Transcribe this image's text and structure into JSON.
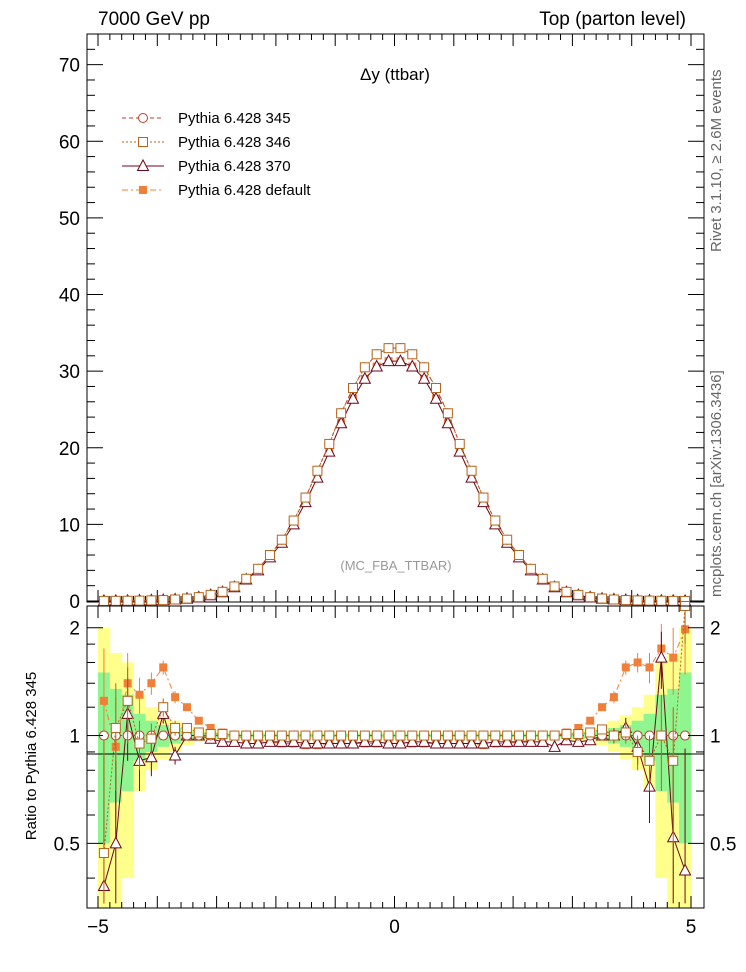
{
  "header": {
    "energy": "7000 GeV pp",
    "process": "Top (parton level)"
  },
  "side": {
    "rivet": "Rivet 3.1.10, ≥ 2.6M events",
    "source": "mcplots.cern.ch [arXiv:1306.3436]"
  },
  "chart_data": {
    "type": "line",
    "title": "Δy (ttbar)",
    "analysis": "(MC_FBA_TTBAR)",
    "xlim": [
      -5,
      5
    ],
    "ylim": [
      0,
      74
    ],
    "ratio_ylim": [
      0.33,
      2.3
    ],
    "ratio_ylabel": "Ratio to Pythia 6.428 345",
    "x_ticks": [
      "−5",
      "0",
      "5"
    ],
    "y_ticks": [
      "0",
      "10",
      "20",
      "30",
      "40",
      "50",
      "60",
      "70"
    ],
    "ratio_ticks": [
      "0.5",
      "1",
      "2"
    ],
    "x": [
      -4.9,
      -4.7,
      -4.5,
      -4.3,
      -4.1,
      -3.9,
      -3.7,
      -3.5,
      -3.3,
      -3.1,
      -2.9,
      -2.7,
      -2.5,
      -2.3,
      -2.1,
      -1.9,
      -1.7,
      -1.5,
      -1.3,
      -1.1,
      -0.9,
      -0.7,
      -0.5,
      -0.3,
      -0.1,
      0.1,
      0.3,
      0.5,
      0.7,
      0.9,
      1.1,
      1.3,
      1.5,
      1.7,
      1.9,
      2.1,
      2.3,
      2.5,
      2.7,
      2.9,
      3.1,
      3.3,
      3.5,
      3.7,
      3.9,
      4.1,
      4.3,
      4.5,
      4.7,
      4.9
    ],
    "series": [
      {
        "name": "Pythia 6.428 345",
        "color": "#c0392b",
        "marker": "open-circle",
        "values": [
          0.01,
          0.02,
          0.03,
          0.05,
          0.08,
          0.12,
          0.2,
          0.32,
          0.5,
          0.8,
          1.2,
          1.9,
          2.9,
          4.2,
          6.0,
          8.0,
          10.5,
          13.5,
          17.0,
          20.5,
          24.5,
          27.8,
          30.5,
          32.2,
          33.0,
          33.0,
          32.2,
          30.5,
          27.8,
          24.5,
          20.5,
          17.0,
          13.5,
          10.5,
          8.0,
          6.0,
          4.2,
          2.9,
          1.9,
          1.2,
          0.8,
          0.5,
          0.32,
          0.2,
          0.12,
          0.08,
          0.05,
          0.03,
          0.02,
          0.01
        ],
        "ratio": [
          1,
          1,
          1,
          1,
          1,
          1,
          1,
          1,
          1,
          1,
          1,
          1,
          1,
          1,
          1,
          1,
          1,
          1,
          1,
          1,
          1,
          1,
          1,
          1,
          1,
          1,
          1,
          1,
          1,
          1,
          1,
          1,
          1,
          1,
          1,
          1,
          1,
          1,
          1,
          1,
          1,
          1,
          1,
          1,
          1,
          1,
          1,
          1,
          1,
          1
        ]
      },
      {
        "name": "Pythia 6.428 346",
        "color": "#b5651d",
        "marker": "open-square",
        "values": [
          0.01,
          0.02,
          0.03,
          0.05,
          0.08,
          0.12,
          0.2,
          0.32,
          0.5,
          0.8,
          1.2,
          1.9,
          2.9,
          4.2,
          6.0,
          8.0,
          10.5,
          13.5,
          17.0,
          20.5,
          24.5,
          27.8,
          30.5,
          32.2,
          33.0,
          33.0,
          32.2,
          30.5,
          27.8,
          24.5,
          20.5,
          17.0,
          13.5,
          10.5,
          8.0,
          6.0,
          4.2,
          2.9,
          1.9,
          1.2,
          0.8,
          0.5,
          0.32,
          0.2,
          0.12,
          0.08,
          0.05,
          0.03,
          0.02,
          0.01
        ],
        "ratio": [
          0.47,
          1.05,
          1.25,
          0.95,
          0.98,
          1.2,
          1.05,
          1.05,
          1.02,
          1.01,
          1.01,
          1.0,
          1.0,
          1.0,
          1.0,
          1.0,
          1.0,
          1.0,
          1.0,
          1.0,
          1.0,
          1.0,
          1.0,
          1.0,
          1.0,
          1.0,
          1.0,
          1.0,
          1.0,
          1.0,
          1.0,
          1.0,
          1.0,
          1.0,
          1.0,
          1.0,
          1.0,
          1.0,
          1.0,
          1.01,
          1.01,
          1.02,
          1.04,
          1.0,
          1.02,
          0.9,
          0.85,
          1.0,
          0.85,
          2.3
        ]
      },
      {
        "name": "Pythia 6.428 370",
        "color": "#6d071a",
        "marker": "open-triangle",
        "values": [
          0.01,
          0.02,
          0.03,
          0.05,
          0.08,
          0.12,
          0.2,
          0.3,
          0.47,
          0.75,
          1.15,
          1.8,
          2.8,
          4.0,
          5.7,
          7.6,
          10.0,
          12.9,
          16.1,
          19.5,
          23.2,
          26.4,
          29.0,
          30.6,
          31.3,
          31.3,
          30.6,
          29.0,
          26.4,
          23.2,
          19.5,
          16.1,
          12.9,
          10.0,
          7.6,
          5.7,
          4.0,
          2.8,
          1.8,
          1.15,
          0.75,
          0.47,
          0.3,
          0.2,
          0.12,
          0.08,
          0.05,
          0.03,
          0.02,
          0.01
        ],
        "ratio": [
          0.38,
          0.5,
          1.15,
          0.85,
          0.87,
          1.15,
          0.88,
          1.0,
          1.0,
          0.98,
          0.96,
          0.96,
          0.95,
          0.95,
          0.96,
          0.96,
          0.96,
          0.95,
          0.95,
          0.95,
          0.95,
          0.95,
          0.96,
          0.96,
          0.95,
          0.95,
          0.96,
          0.96,
          0.95,
          0.95,
          0.95,
          0.95,
          0.95,
          0.96,
          0.96,
          0.96,
          0.96,
          0.96,
          0.93,
          0.97,
          0.96,
          0.97,
          1.0,
          1.0,
          1.05,
          0.93,
          0.72,
          1.65,
          0.52,
          0.42
        ]
      },
      {
        "name": "Pythia 6.428 default",
        "color": "#f07f3a",
        "marker": "filled-square",
        "values": [
          0.01,
          0.02,
          0.03,
          0.05,
          0.08,
          0.12,
          0.2,
          0.3,
          0.47,
          0.75,
          1.15,
          1.8,
          2.8,
          4.0,
          5.7,
          7.6,
          10.0,
          12.9,
          16.1,
          19.5,
          23.2,
          26.4,
          29.0,
          30.6,
          31.3,
          31.3,
          30.6,
          29.0,
          26.4,
          23.2,
          19.5,
          16.1,
          12.9,
          10.0,
          7.6,
          5.7,
          4.0,
          2.8,
          1.8,
          1.15,
          0.75,
          0.47,
          0.3,
          0.2,
          0.12,
          0.08,
          0.05,
          0.03,
          0.02,
          0.01
        ],
        "ratio": [
          1.25,
          0.93,
          1.4,
          1.3,
          1.4,
          1.55,
          1.28,
          1.2,
          1.1,
          1.05,
          1.02,
          1.0,
          0.98,
          0.97,
          0.96,
          0.95,
          0.95,
          0.94,
          0.94,
          0.95,
          0.95,
          0.95,
          0.95,
          0.95,
          0.95,
          0.95,
          0.95,
          0.95,
          0.95,
          0.95,
          0.95,
          0.95,
          0.94,
          0.95,
          0.95,
          0.96,
          0.97,
          0.98,
          1.0,
          1.02,
          1.05,
          1.1,
          1.2,
          1.28,
          1.55,
          1.6,
          1.55,
          1.75,
          1.65,
          1.98
        ]
      }
    ],
    "band_half_green": [
      0.5,
      0.35,
      0.3,
      0.15,
      0.1,
      0.07,
      0.05,
      0.03,
      0.02,
      0.02,
      0.01,
      0.01,
      0.01,
      0.01,
      0.01,
      0.01,
      0.01,
      0.01,
      0.01,
      0.01,
      0.01,
      0.01,
      0.01,
      0.01,
      0.01,
      0.01,
      0.01,
      0.01,
      0.01,
      0.01,
      0.01,
      0.01,
      0.01,
      0.01,
      0.01,
      0.01,
      0.01,
      0.01,
      0.01,
      0.01,
      0.02,
      0.02,
      0.03,
      0.05,
      0.07,
      0.1,
      0.15,
      0.3,
      0.35,
      0.5
    ],
    "band_half_yellow": [
      1.0,
      0.7,
      0.6,
      0.3,
      0.2,
      0.14,
      0.1,
      0.06,
      0.04,
      0.04,
      0.02,
      0.02,
      0.02,
      0.02,
      0.02,
      0.02,
      0.02,
      0.02,
      0.02,
      0.02,
      0.02,
      0.02,
      0.02,
      0.02,
      0.02,
      0.02,
      0.02,
      0.02,
      0.02,
      0.02,
      0.02,
      0.02,
      0.02,
      0.02,
      0.02,
      0.02,
      0.02,
      0.02,
      0.02,
      0.02,
      0.04,
      0.04,
      0.06,
      0.1,
      0.14,
      0.2,
      0.3,
      0.6,
      0.7,
      1.0
    ]
  }
}
